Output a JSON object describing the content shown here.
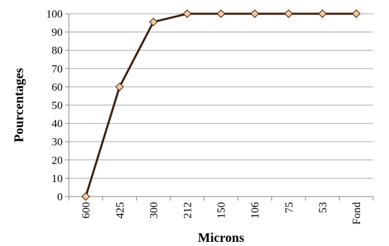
{
  "chart_data": {
    "type": "line",
    "categories": [
      "600",
      "425",
      "300",
      "212",
      "150",
      "106",
      "75",
      "53",
      "Fond"
    ],
    "series": [
      {
        "values": [
          0,
          60,
          95.5,
          100,
          100,
          100,
          100,
          100,
          100
        ]
      }
    ],
    "xlabel": "Microns",
    "ylabel": "Pourcentages",
    "ylim": [
      0,
      100
    ],
    "yticks": [
      "0",
      "10",
      "20",
      "30",
      "40",
      "50",
      "60",
      "70",
      "80",
      "90",
      "100"
    ],
    "grid": "horizontal",
    "line_color": "#3d1f0a",
    "marker": "diamond",
    "marker_fill": "#f2c9a0",
    "gridline_color": "#a6a6a6"
  }
}
